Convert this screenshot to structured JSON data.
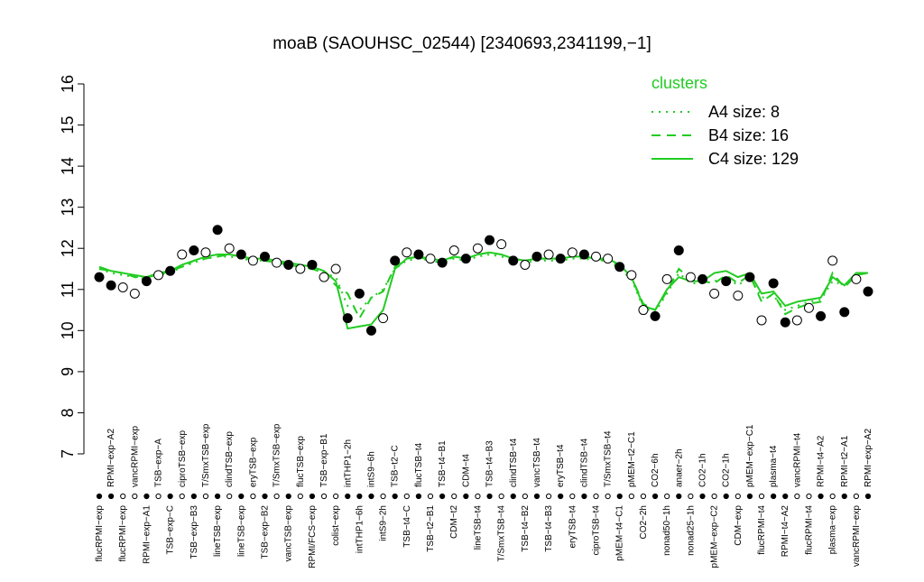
{
  "chart_data": {
    "type": "line",
    "title": "moaB (SAOUHSC_02544) [2340693,2341199,−1]",
    "legend_title": "clusters",
    "ylim": [
      7,
      16
    ],
    "yticks": [
      7,
      8,
      9,
      10,
      11,
      12,
      13,
      14,
      15,
      16
    ],
    "categories": [
      "flucRPMI−exp",
      "RPMI−exp−A2",
      "flucRPMI−exp",
      "vancRPMI−exp",
      "RPMI−exp−A1",
      "TSB−exp−A",
      "TSB−exp−C",
      "ciproTSB−exp",
      "TSB−exp−B3",
      "T/SmxTSB−exp",
      "lineTSB−exp",
      "clindTSB−exp",
      "lineTSB−exp",
      "eryTSB−exp",
      "TSB−exp−B2",
      "T/SmxTSB−exp",
      "vancTSB−exp",
      "flucTSB−exp",
      "RPMI/FCS−exp",
      "TSB−exp−B1",
      "colist−exp",
      "intTHP1−2h",
      "intTHP1−6h",
      "intS9−6h",
      "intS9−2h",
      "TSB−t2−C",
      "TSB−t4−C",
      "flucTSB−t4",
      "TSB−t2−B1",
      "TSB−t4−B1",
      "CDM−t2",
      "CDM−t4",
      "lineTSB−t4",
      "TSB−t4−B3",
      "T/SmxTSB−t4",
      "clindTSB−t4",
      "TSB−t4−B2",
      "vancTSB−t4",
      "TSB−t4−B3",
      "eryTSB−t4",
      "eryTSB−t4",
      "clindTSB−t4",
      "ciproTSB−t4",
      "T/SmxTSB−t4",
      "pMEM−t4−C1",
      "pMEM−t2−C1",
      "CO2−2h",
      "CO2−6h",
      "nonad50−1h",
      "anaer−2h",
      "nonad25−1h",
      "CO2−1h",
      "pMEM−exp−C2",
      "CO2−1h",
      "CDM−exp",
      "pMEM−exp−C1",
      "flucRPMI−t4",
      "plasma−t4",
      "RPMI−t4−A2",
      "vancRPMI−t4",
      "flucRPMI−t4",
      "RPMI−t4−A2",
      "plasma−exp",
      "RPMI−t2−A1",
      "vancRPMI−exp",
      "RPMI−exp−A2"
    ],
    "values": [
      11.3,
      11.1,
      11.05,
      10.9,
      11.2,
      11.35,
      11.45,
      11.85,
      11.95,
      11.9,
      12.45,
      12.0,
      11.85,
      11.7,
      11.8,
      11.65,
      11.6,
      11.5,
      11.6,
      11.3,
      11.5,
      10.3,
      10.9,
      10.0,
      10.3,
      11.7,
      11.9,
      11.85,
      11.75,
      11.65,
      11.95,
      11.75,
      12.0,
      12.2,
      12.1,
      11.7,
      11.6,
      11.8,
      11.85,
      11.75,
      11.9,
      11.85,
      11.8,
      11.75,
      11.55,
      11.35,
      10.5,
      10.35,
      11.25,
      11.95,
      11.3,
      11.25,
      10.9,
      11.2,
      10.85,
      11.3,
      10.25,
      11.15,
      10.2,
      10.25,
      10.55,
      10.35,
      11.7,
      10.45,
      11.25,
      10.95
    ],
    "point_colors": [
      "black",
      "black",
      "white",
      "white",
      "black",
      "white",
      "black",
      "white",
      "black",
      "white",
      "black",
      "white",
      "black",
      "white",
      "black",
      "white",
      "black",
      "white",
      "black",
      "white",
      "white",
      "black",
      "black",
      "black",
      "white",
      "black",
      "white",
      "black",
      "white",
      "black",
      "white",
      "black",
      "white",
      "black",
      "white",
      "black",
      "white",
      "black",
      "white",
      "black",
      "white",
      "black",
      "white",
      "white",
      "black",
      "white",
      "white",
      "black",
      "white",
      "black",
      "white",
      "black",
      "white",
      "black",
      "white",
      "black",
      "white",
      "black",
      "black",
      "white",
      "white",
      "black",
      "white",
      "black",
      "white",
      "black"
    ],
    "series": [
      {
        "name": "A4 size: 8",
        "color": "#22cc22",
        "dash": "dotted",
        "values": [
          11.5,
          11.4,
          11.35,
          11.3,
          11.25,
          11.35,
          11.4,
          11.55,
          11.65,
          11.75,
          11.8,
          11.8,
          11.75,
          11.7,
          11.7,
          11.65,
          11.6,
          11.55,
          11.5,
          11.4,
          11.3,
          10.6,
          10.5,
          10.8,
          11.0,
          11.5,
          11.7,
          11.75,
          11.7,
          11.65,
          11.75,
          11.7,
          11.8,
          11.85,
          11.8,
          11.7,
          11.65,
          11.7,
          11.7,
          11.7,
          11.75,
          11.75,
          11.7,
          11.7,
          11.5,
          11.25,
          10.55,
          10.45,
          10.9,
          11.4,
          11.15,
          11.15,
          11.2,
          11.3,
          11.1,
          11.3,
          10.8,
          10.85,
          10.5,
          10.6,
          10.7,
          10.75,
          11.2,
          11.1,
          11.35,
          11.4
        ]
      },
      {
        "name": "B4 size: 16",
        "color": "#22cc22",
        "dash": "dashed",
        "values": [
          11.5,
          11.45,
          11.4,
          11.3,
          11.3,
          11.35,
          11.45,
          11.55,
          11.7,
          11.75,
          11.8,
          11.85,
          11.8,
          11.7,
          11.7,
          11.65,
          11.6,
          11.55,
          11.5,
          11.4,
          11.1,
          10.9,
          10.3,
          10.8,
          10.95,
          11.55,
          11.75,
          11.8,
          11.7,
          11.65,
          11.8,
          11.75,
          11.85,
          11.9,
          11.85,
          11.75,
          11.7,
          11.75,
          11.75,
          11.75,
          11.8,
          11.8,
          11.75,
          11.7,
          11.55,
          11.3,
          10.65,
          10.5,
          10.95,
          11.5,
          11.25,
          11.2,
          11.15,
          11.35,
          11.15,
          11.35,
          10.7,
          10.9,
          10.4,
          10.55,
          10.65,
          10.7,
          11.4,
          11.05,
          11.35,
          11.4
        ]
      },
      {
        "name": "C4 size: 129",
        "color": "#22cc22",
        "dash": "solid",
        "values": [
          11.55,
          11.45,
          11.4,
          11.35,
          11.3,
          11.4,
          11.45,
          11.6,
          11.7,
          11.8,
          11.85,
          11.85,
          11.8,
          11.75,
          11.75,
          11.7,
          11.65,
          11.6,
          11.55,
          11.45,
          11.2,
          10.05,
          10.1,
          10.15,
          10.5,
          11.5,
          11.75,
          11.8,
          11.75,
          11.7,
          11.8,
          11.75,
          11.85,
          11.9,
          11.85,
          11.75,
          11.7,
          11.75,
          11.75,
          11.75,
          11.8,
          11.8,
          11.75,
          11.75,
          11.6,
          11.3,
          10.6,
          10.5,
          11.0,
          11.3,
          11.2,
          11.2,
          11.4,
          11.45,
          11.3,
          11.4,
          10.9,
          10.95,
          10.6,
          10.7,
          10.75,
          10.8,
          11.3,
          11.1,
          11.4,
          11.4
        ]
      }
    ]
  }
}
